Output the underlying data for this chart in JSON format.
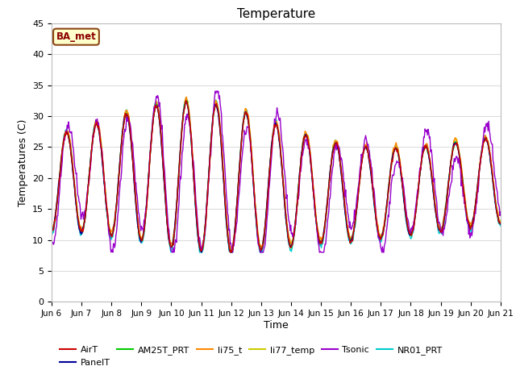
{
  "title": "Temperature",
  "xlabel": "Time",
  "ylabel": "Temperatures (C)",
  "ylim": [
    0,
    45
  ],
  "annotation_text": "BA_met",
  "annotation_bg": "#FFFFCC",
  "annotation_border": "#8B4513",
  "series_colors": {
    "AirT": "#CC0000",
    "PanelT": "#000099",
    "AM25T_PRT": "#00CC00",
    "li75_t": "#FF8800",
    "li77_temp": "#CCCC00",
    "Tsonic": "#9900CC",
    "NR01_PRT": "#00CCCC"
  },
  "fig_bg": "#FFFFFF",
  "plot_bg": "#FFFFFF",
  "grid_color": "#DDDDDD",
  "yticks": [
    0,
    5,
    10,
    15,
    20,
    25,
    30,
    35,
    40,
    45
  ],
  "xtick_labels": [
    "Jun 6",
    "Jun 7",
    "Jun 8",
    "Jun 9",
    "Jun 10",
    "Jun 11",
    "Jun 12",
    "Jun 13",
    "Jun 14",
    "Jun 15",
    "Jun 16",
    "Jun 17",
    "Jun 18",
    "Jun 19",
    "Jun 20",
    "Jun 21"
  ],
  "n_days": 15
}
